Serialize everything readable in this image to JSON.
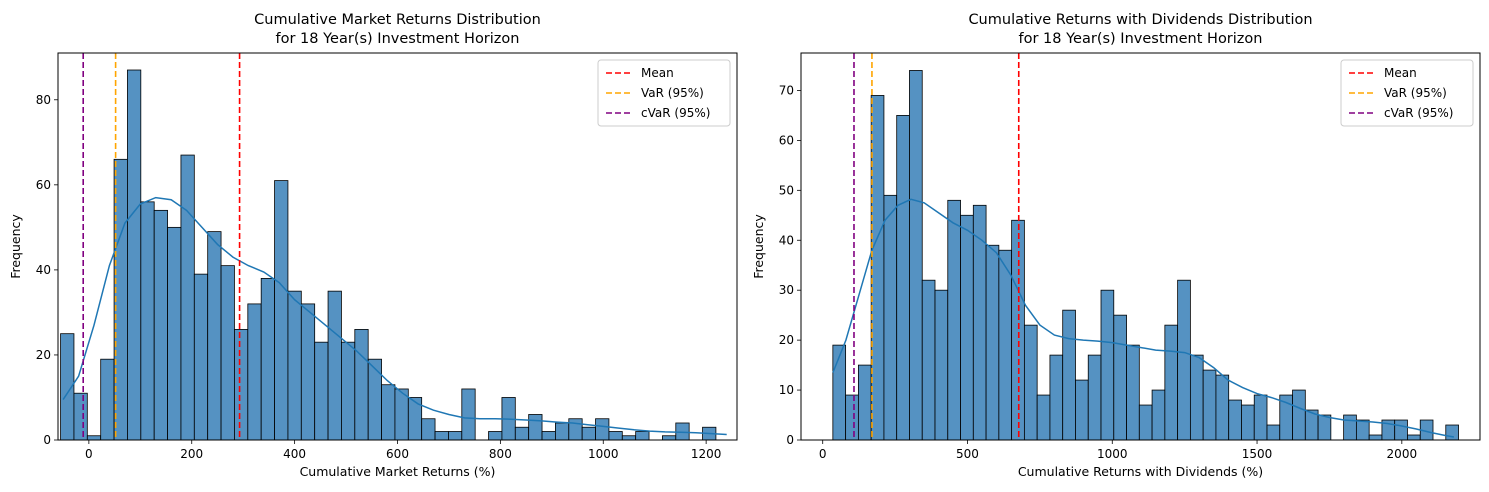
{
  "chart_data": [
    {
      "type": "histogram",
      "title": "Cumulative Market Returns Distribution\nfor 18 Year(s) Investment Horizon",
      "xlabel": "Cumulative Market Returns (%)",
      "ylabel": "Frequency",
      "xlim": [
        -60,
        1260
      ],
      "ylim": [
        0,
        91
      ],
      "xticks": [
        0,
        200,
        400,
        600,
        800,
        1000,
        1200
      ],
      "yticks": [
        0,
        20,
        40,
        60,
        80
      ],
      "bin_start": -55,
      "bin_width": 26,
      "counts": [
        25,
        11,
        1,
        19,
        66,
        87,
        56,
        54,
        50,
        67,
        39,
        49,
        41,
        26,
        32,
        38,
        61,
        35,
        32,
        23,
        35,
        23,
        26,
        19,
        13,
        12,
        10,
        5,
        2,
        2,
        12,
        0,
        2,
        10,
        3,
        6,
        2,
        4,
        5,
        3,
        5,
        2,
        1,
        2,
        0,
        1,
        4,
        0,
        3
      ],
      "kde": [
        [
          -50,
          9.5
        ],
        [
          -20,
          15
        ],
        [
          10,
          27
        ],
        [
          40,
          41
        ],
        [
          70,
          51
        ],
        [
          100,
          55.5
        ],
        [
          130,
          57
        ],
        [
          160,
          56.5
        ],
        [
          190,
          54
        ],
        [
          220,
          50
        ],
        [
          250,
          46
        ],
        [
          280,
          43
        ],
        [
          310,
          41
        ],
        [
          340,
          39.5
        ],
        [
          370,
          37
        ],
        [
          400,
          33
        ],
        [
          430,
          30
        ],
        [
          460,
          27
        ],
        [
          490,
          24
        ],
        [
          520,
          21
        ],
        [
          550,
          17.5
        ],
        [
          580,
          14
        ],
        [
          610,
          11
        ],
        [
          640,
          8.5
        ],
        [
          670,
          7
        ],
        [
          700,
          6
        ],
        [
          730,
          5.2
        ],
        [
          760,
          5
        ],
        [
          790,
          5
        ],
        [
          820,
          4.9
        ],
        [
          850,
          4.7
        ],
        [
          880,
          4.5
        ],
        [
          910,
          4.2
        ],
        [
          940,
          4
        ],
        [
          970,
          3.6
        ],
        [
          1000,
          3.2
        ],
        [
          1030,
          2.8
        ],
        [
          1060,
          2.4
        ],
        [
          1090,
          2.1
        ],
        [
          1120,
          1.9
        ],
        [
          1150,
          1.8
        ],
        [
          1180,
          1.7
        ],
        [
          1210,
          1.5
        ],
        [
          1240,
          1.3
        ]
      ],
      "lines": [
        {
          "name": "Mean",
          "x": 293,
          "color": "#ff0000"
        },
        {
          "name": "VaR (95%)",
          "x": 52,
          "color": "#ffa500"
        },
        {
          "name": "cVaR (95%)",
          "x": -11,
          "color": "#800080"
        }
      ],
      "legend_position": "top-right",
      "bar_color": "#4c8cbf",
      "kde_color": "#1f77b4"
    },
    {
      "type": "histogram",
      "title": "Cumulative Returns with Dividends Distribution\nfor 18 Year(s) Investment Horizon",
      "xlabel": "Cumulative Returns with Dividends (%)",
      "ylabel": "Frequency",
      "xlim": [
        -75,
        2270
      ],
      "ylim": [
        0,
        77.5
      ],
      "xticks": [
        0,
        500,
        1000,
        1500,
        2000
      ],
      "yticks": [
        0,
        10,
        20,
        30,
        40,
        50,
        60,
        70
      ],
      "bin_start": 35,
      "bin_width": 44.1,
      "counts": [
        19,
        9,
        15,
        69,
        49,
        65,
        74,
        32,
        30,
        48,
        45,
        47,
        39,
        38,
        44,
        23,
        9,
        17,
        26,
        12,
        17,
        30,
        25,
        19,
        7,
        10,
        23,
        32,
        17,
        14,
        13,
        8,
        7,
        9,
        3,
        9,
        10,
        6,
        5,
        0,
        5,
        4,
        1,
        4,
        4,
        1,
        4,
        0,
        3
      ],
      "kde": [
        [
          35,
          13.5
        ],
        [
          80,
          20
        ],
        [
          125,
          29
        ],
        [
          170,
          38
        ],
        [
          215,
          44
        ],
        [
          260,
          47
        ],
        [
          305,
          48.2
        ],
        [
          350,
          47.5
        ],
        [
          400,
          45.5
        ],
        [
          450,
          43.5
        ],
        [
          500,
          42
        ],
        [
          550,
          40
        ],
        [
          600,
          37.5
        ],
        [
          650,
          33
        ],
        [
          700,
          27
        ],
        [
          750,
          23
        ],
        [
          800,
          21
        ],
        [
          850,
          20.3
        ],
        [
          900,
          20
        ],
        [
          950,
          19.8
        ],
        [
          1000,
          19.5
        ],
        [
          1050,
          19
        ],
        [
          1100,
          18.5
        ],
        [
          1150,
          18
        ],
        [
          1200,
          17.8
        ],
        [
          1250,
          17.5
        ],
        [
          1300,
          16.5
        ],
        [
          1350,
          14.5
        ],
        [
          1400,
          12
        ],
        [
          1450,
          10.5
        ],
        [
          1500,
          9.3
        ],
        [
          1550,
          8.5
        ],
        [
          1600,
          7.5
        ],
        [
          1650,
          6.3
        ],
        [
          1700,
          5.2
        ],
        [
          1750,
          4.5
        ],
        [
          1800,
          4
        ],
        [
          1850,
          3.8
        ],
        [
          1900,
          3.6
        ],
        [
          1950,
          3.3
        ],
        [
          2000,
          2.8
        ],
        [
          2050,
          2.2
        ],
        [
          2100,
          1.5
        ],
        [
          2150,
          0.9
        ],
        [
          2180,
          0.6
        ]
      ],
      "lines": [
        {
          "name": "Mean",
          "x": 677,
          "color": "#ff0000"
        },
        {
          "name": "VaR (95%)",
          "x": 170,
          "color": "#ffa500"
        },
        {
          "name": "cVaR (95%)",
          "x": 108,
          "color": "#800080"
        }
      ],
      "legend_position": "top-right",
      "bar_color": "#4c8cbf",
      "kde_color": "#1f77b4"
    }
  ]
}
